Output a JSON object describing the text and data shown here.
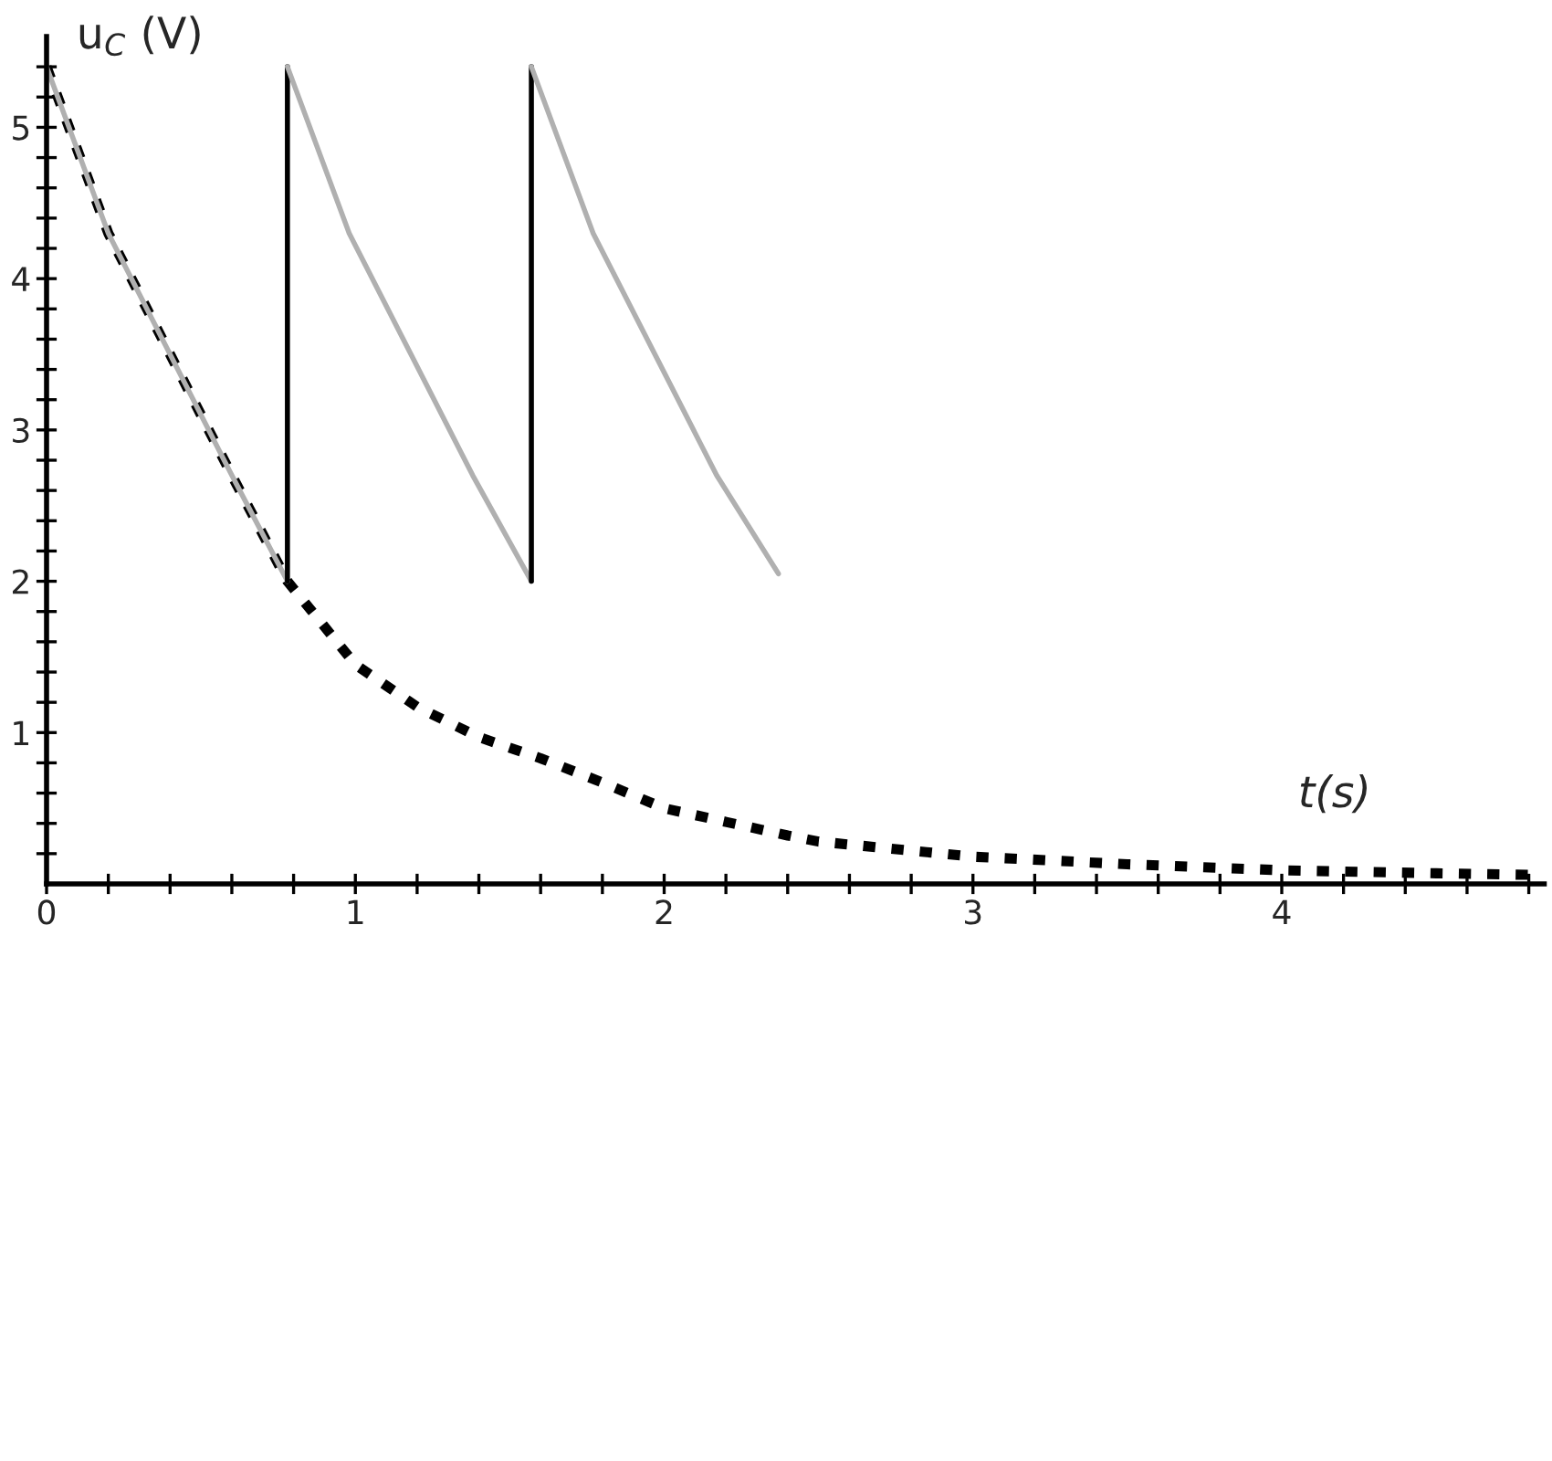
{
  "chart_data": {
    "type": "line",
    "xlabel": "t(s)",
    "ylabel": "u$_{C}$ (V)",
    "series": [
      {
        "color": "#000000",
        "line_style": "dashed",
        "x": [
          0,
          0.2,
          0.4,
          0.6,
          0.78,
          1.0,
          1.2,
          1.4,
          1.6,
          1.8,
          2.0,
          2.2,
          2.4,
          2.5,
          3.0,
          3.5,
          4.0,
          4.5,
          4.8
        ],
        "values": [
          5.4,
          4.3,
          3.5,
          2.7,
          2.0,
          1.45,
          1.17,
          0.97,
          0.83,
          0.67,
          0.5,
          0.41,
          0.32,
          0.28,
          0.18,
          0.13,
          0.09,
          0.07,
          0.06
        ]
      },
      {
        "color": "#b0b0b0",
        "line_style": "solid",
        "x": [
          0,
          0.2,
          0.4,
          0.6,
          0.78
        ],
        "values": [
          5.4,
          4.3,
          3.5,
          2.7,
          2.0
        ]
      },
      {
        "color": "#000000",
        "line_style": "solid",
        "x": [
          0.78,
          0.78
        ],
        "values": [
          2.0,
          5.4
        ]
      },
      {
        "color": "#b0b0b0",
        "line_style": "solid",
        "x": [
          0.78,
          0.98,
          1.18,
          1.38,
          1.57
        ],
        "values": [
          5.4,
          4.3,
          3.5,
          2.7,
          2.0
        ]
      },
      {
        "color": "#000000",
        "line_style": "solid",
        "x": [
          1.57,
          1.57
        ],
        "values": [
          2.0,
          5.4
        ]
      },
      {
        "color": "#b0b0b0",
        "line_style": "solid",
        "x": [
          1.57,
          1.77,
          1.97,
          2.17,
          2.37
        ],
        "values": [
          5.4,
          4.3,
          3.5,
          2.7,
          2.05
        ]
      }
    ],
    "xlim": [
      0,
      4.85
    ],
    "ylim": [
      0,
      5.6
    ],
    "xticks": [
      0,
      {
        "value": 0.2,
        "label": null
      },
      {
        "value": 0.4,
        "label": null
      },
      {
        "value": 0.6,
        "label": null
      },
      {
        "value": 0.8,
        "label": null
      },
      1,
      {
        "value": 1.2,
        "label": null
      },
      {
        "value": 1.4,
        "label": null
      },
      {
        "value": 1.6,
        "label": null
      },
      {
        "value": 1.8,
        "label": null
      },
      2,
      {
        "value": 2.2,
        "label": null
      },
      {
        "value": 2.4,
        "label": null
      },
      {
        "value": 2.6,
        "label": null
      },
      {
        "value": 2.8,
        "label": null
      },
      3,
      {
        "value": 3.2,
        "label": null
      },
      {
        "value": 3.4,
        "label": null
      },
      {
        "value": 3.6,
        "label": null
      },
      {
        "value": 3.8,
        "label": null
      },
      4,
      {
        "value": 4.2,
        "label": null
      },
      {
        "value": 4.4,
        "label": null
      },
      {
        "value": 4.6,
        "label": null
      },
      {
        "value": 4.8,
        "label": null
      }
    ],
    "yticks": [
      {
        "value": 0.2,
        "label": null
      },
      {
        "value": 0.4,
        "label": null
      },
      {
        "value": 0.6,
        "label": null
      },
      {
        "value": 0.8,
        "label": null
      },
      1,
      {
        "value": 1.2,
        "label": null
      },
      {
        "value": 1.4,
        "label": null
      },
      {
        "value": 1.6,
        "label": null
      },
      {
        "value": 1.8,
        "label": null
      },
      2,
      {
        "value": 2.2,
        "label": null
      },
      {
        "value": 2.4,
        "label": null
      },
      {
        "value": 2.6,
        "label": null
      },
      {
        "value": 2.8,
        "label": null
      },
      3,
      {
        "value": 3.2,
        "label": null
      },
      {
        "value": 3.4,
        "label": null
      },
      {
        "value": 3.6,
        "label": null
      },
      {
        "value": 3.8,
        "label": null
      },
      4,
      {
        "value": 4.2,
        "label": null
      },
      {
        "value": 4.4,
        "label": null
      },
      {
        "value": 4.6,
        "label": null
      },
      {
        "value": 4.8,
        "label": null
      },
      5,
      {
        "value": 5.2,
        "label": null
      },
      {
        "value": 5.4,
        "label": null
      }
    ],
    "grid": false,
    "legend": false
  }
}
